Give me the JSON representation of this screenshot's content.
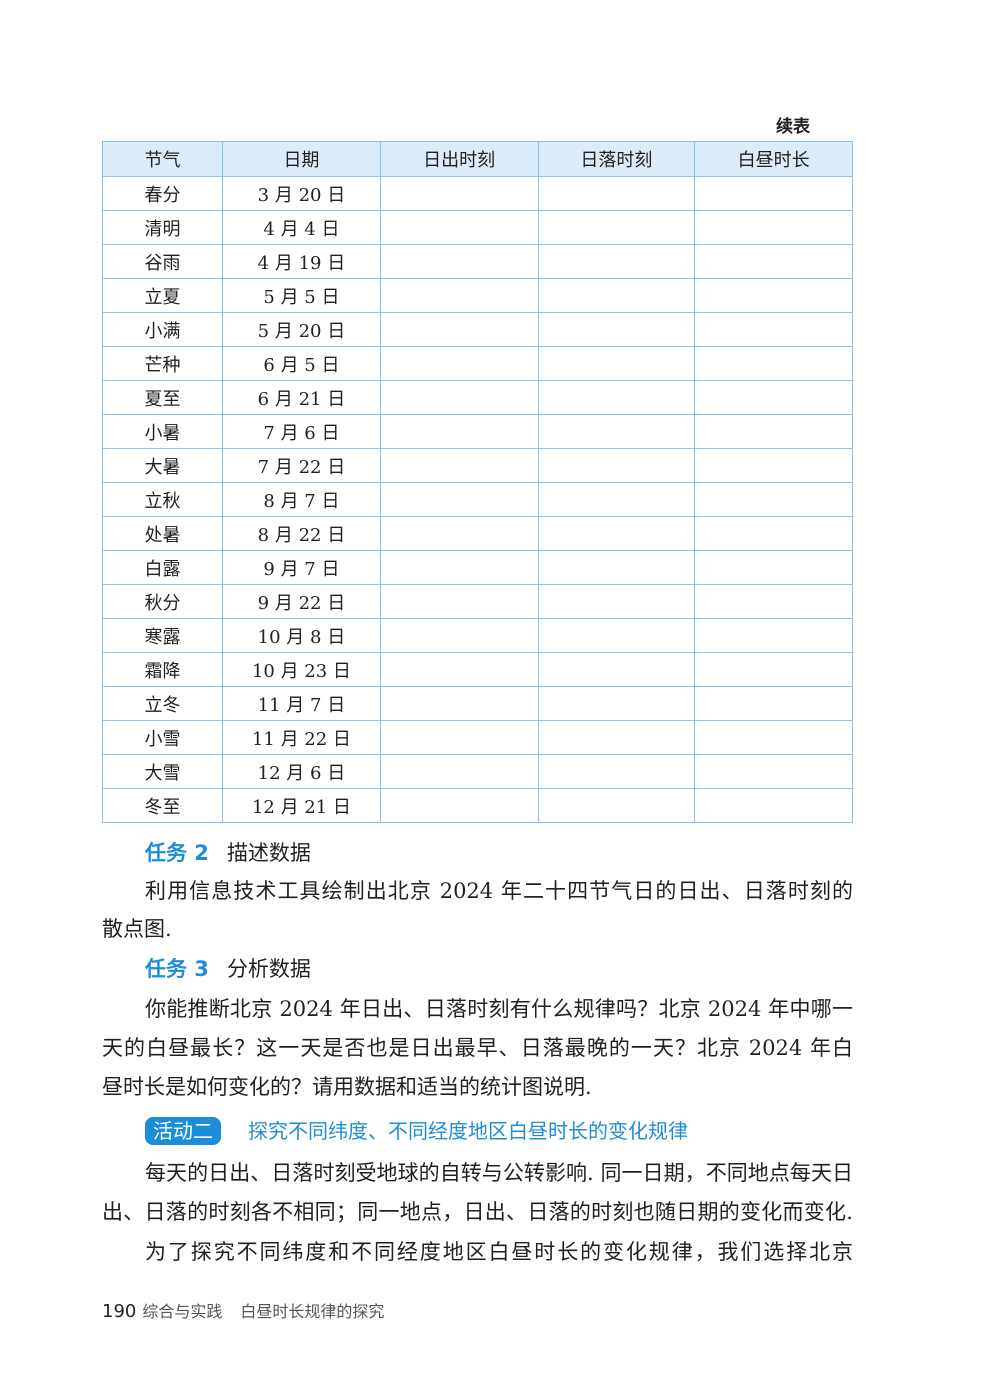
{
  "table": {
    "caption": "续表",
    "headers": [
      "节气",
      "日期",
      "日出时刻",
      "日落时刻",
      "白昼时长"
    ],
    "rows": [
      [
        "春分",
        "3 月 20 日"
      ],
      [
        "清明",
        "4 月 4 日"
      ],
      [
        "谷雨",
        "4 月 19 日"
      ],
      [
        "立夏",
        "5 月 5 日"
      ],
      [
        "小满",
        "5 月 20 日"
      ],
      [
        "芒种",
        "6 月 5 日"
      ],
      [
        "夏至",
        "6 月 21 日"
      ],
      [
        "小暑",
        "7 月 6 日"
      ],
      [
        "大暑",
        "7 月 22 日"
      ],
      [
        "立秋",
        "8 月 7 日"
      ],
      [
        "处暑",
        "8 月 22 日"
      ],
      [
        "白露",
        "9 月 7 日"
      ],
      [
        "秋分",
        "9 月 22 日"
      ],
      [
        "寒露",
        "10 月 8 日"
      ],
      [
        "霜降",
        "10 月 23 日"
      ],
      [
        "立冬",
        "11 月 7 日"
      ],
      [
        "小雪",
        "11 月 22 日"
      ],
      [
        "大雪",
        "12 月 6 日"
      ],
      [
        "冬至",
        "12 月 21 日"
      ]
    ]
  },
  "task2": {
    "label": "任务 2",
    "title": "描述数据",
    "lines": [
      "利用信息技术工具绘制出北京 2024 年二十四节气日的日出、日落时刻的",
      "散点图."
    ]
  },
  "task3": {
    "label": "任务 3",
    "title": "分析数据",
    "lines": [
      "你能推断北京 2024 年日出、日落时刻有什么规律吗？北京 2024 年中哪一",
      "天的白昼最长？这一天是否也是日出最早、日落最晚的一天？北京 2024 年白",
      "昼时长是如何变化的？请用数据和适当的统计图说明."
    ]
  },
  "activity2": {
    "badge": "活动二",
    "title": "探究不同纬度、不同经度地区白昼时长的变化规律",
    "lines": [
      "每天的日出、日落时刻受地球的自转与公转影响. 同一日期，不同地点每天日",
      "出、日落的时刻各不相同；同一地点，日出、日落的时刻也随日期的变化而变化.",
      "为了探究不同纬度和不同经度地区白昼时长的变化规律，我们选择北京"
    ]
  },
  "footer": {
    "page": "190",
    "section": "综合与实践",
    "chapter": "白昼时长规律的探究"
  },
  "colors": {
    "accent": "#1f8dd6",
    "table_header_bg": "#dcecf8",
    "table_border": "#8cc4e8"
  }
}
